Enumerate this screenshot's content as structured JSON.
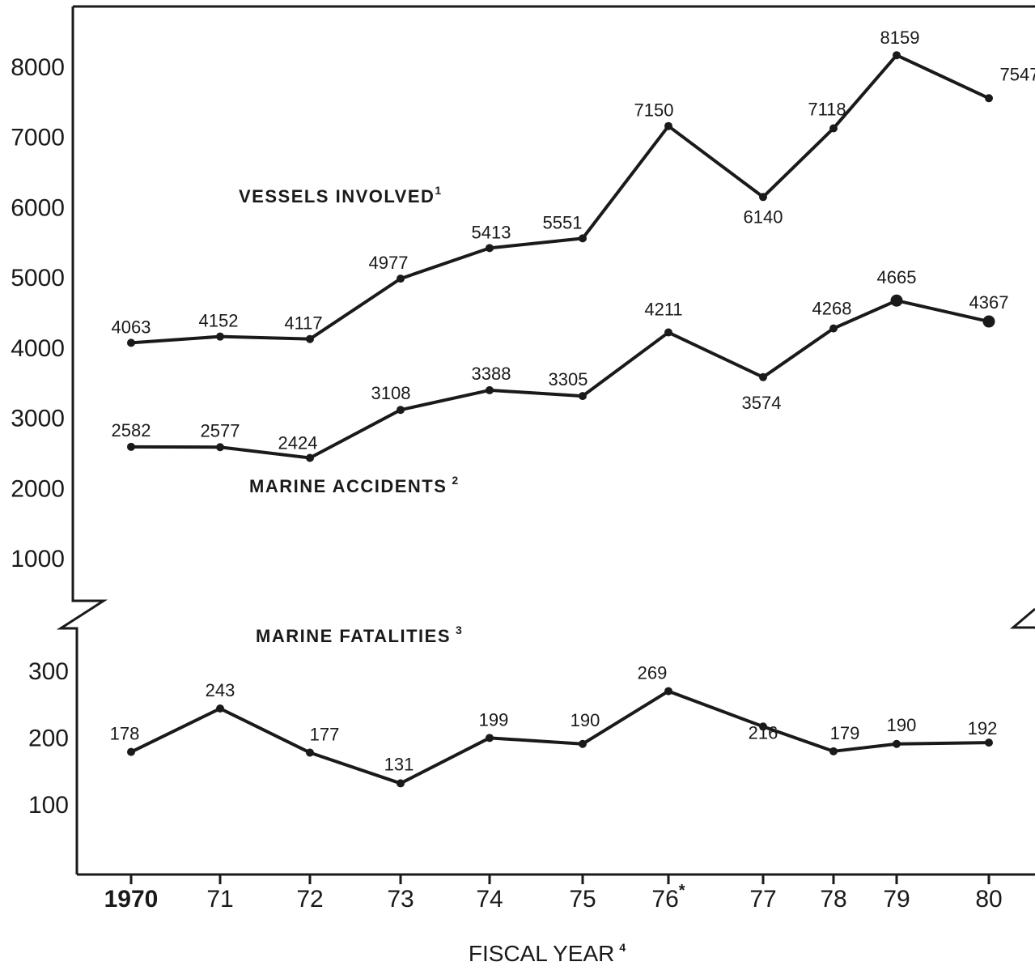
{
  "chart_data": {
    "type": "line",
    "xlabel": "FISCAL YEAR",
    "xlabel_footnote": "4",
    "categories": [
      "1970",
      "71",
      "72",
      "73",
      "74",
      "75",
      "76",
      "77",
      "78",
      "79",
      "80"
    ],
    "category_footnotes": {
      "76": "*"
    },
    "y_axis_upper": {
      "ticks": [
        1000,
        2000,
        3000,
        4000,
        5000,
        6000,
        7000,
        8000
      ],
      "ylim": [
        1000,
        8700
      ]
    },
    "y_axis_lower": {
      "ticks": [
        100,
        200,
        300
      ],
      "ylim": [
        0,
        360
      ]
    },
    "axis_break": true,
    "grid": false,
    "series": [
      {
        "name": "VESSELS INVOLVED",
        "footnote": "1",
        "axis": "upper",
        "values": [
          4063,
          4152,
          4117,
          4977,
          5413,
          5551,
          7150,
          6140,
          7118,
          8159,
          7547
        ]
      },
      {
        "name": "MARINE ACCIDENTS",
        "footnote": "2",
        "axis": "upper",
        "values": [
          2582,
          2577,
          2424,
          3108,
          3388,
          3305,
          4211,
          3574,
          4268,
          4665,
          4367
        ]
      },
      {
        "name": "MARINE FATALITIES",
        "footnote": "3",
        "axis": "lower",
        "values": [
          178,
          243,
          177,
          131,
          199,
          190,
          269,
          216,
          179,
          190,
          192
        ]
      }
    ]
  }
}
